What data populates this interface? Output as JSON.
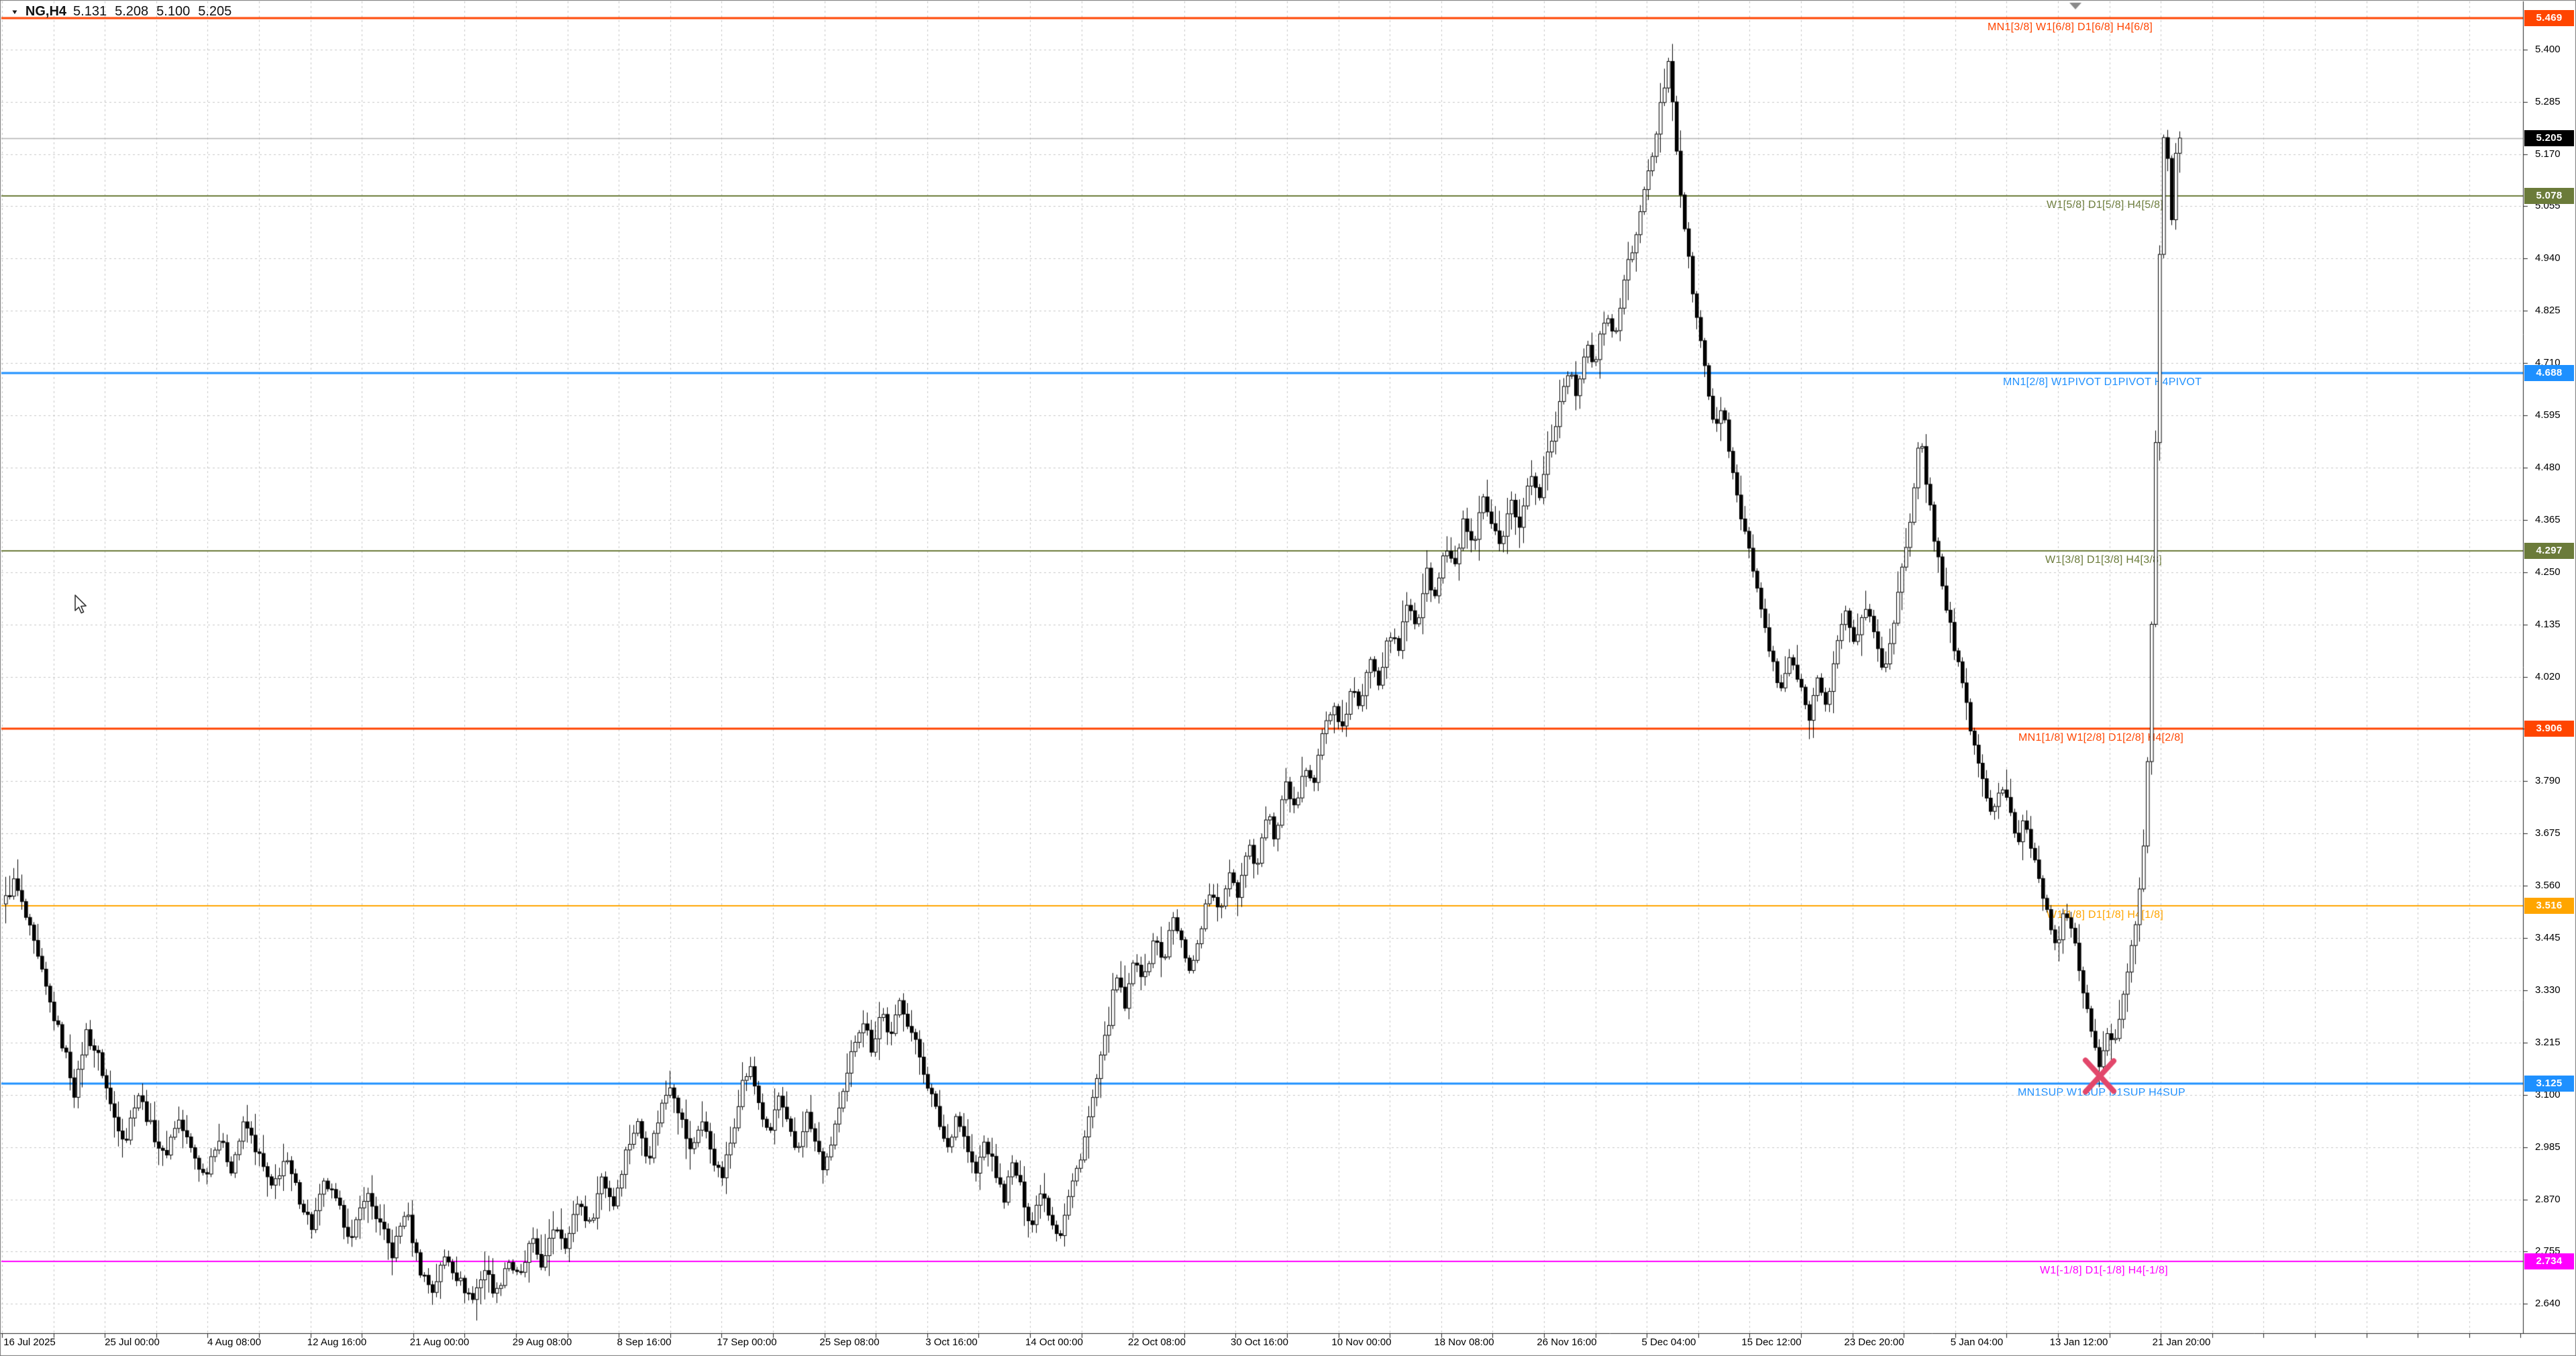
{
  "title": {
    "dropdown_icon": "▼"
  },
  "chart_data": {
    "type": "candlestick",
    "symbol": "NG,H4",
    "timeframe": "H4",
    "current_bar": {
      "open": "5.131",
      "high": "5.208",
      "low": "5.100",
      "close": "5.205"
    },
    "ylim": [
      2.576,
      5.509
    ],
    "grid": "dashed",
    "legend_position": "none",
    "price_ticks": [
      "5.400",
      "5.285",
      "5.170",
      "5.055",
      "4.940",
      "4.825",
      "4.710",
      "4.595",
      "4.480",
      "4.365",
      "4.250",
      "4.135",
      "4.020",
      "3.905",
      "3.790",
      "3.675",
      "3.560",
      "3.445",
      "3.330",
      "3.215",
      "3.100",
      "2.985",
      "2.870",
      "2.755",
      "2.640"
    ],
    "time_labels": [
      "16 Jul 2025",
      "25 Jul 00:00",
      "4 Aug 08:00",
      "12 Aug 16:00",
      "21 Aug 00:00",
      "29 Aug 08:00",
      "8 Sep 16:00",
      "17 Sep 00:00",
      "25 Sep 08:00",
      "3 Oct 16:00",
      "14 Oct 00:00",
      "22 Oct 08:00",
      "30 Oct 16:00",
      "10 Nov 00:00",
      "18 Nov 08:00",
      "26 Nov 16:00",
      "5 Dec 04:00",
      "15 Dec 12:00",
      "23 Dec 20:00",
      "5 Jan 04:00",
      "13 Jan 12:00",
      "21 Jan 20:00"
    ],
    "levels": [
      {
        "label": "MN1[3/8] W1[6/8] D1[6/8] H4[6/8]",
        "price": 5.469,
        "display": "5.469",
        "color": "#ff4500",
        "thickness": 3,
        "label_x": 2962
      },
      {
        "label": "W1[5/8] D1[5/8] H4[5/8]",
        "price": 5.078,
        "display": "5.078",
        "color": "#6b7b3a",
        "thickness": 2,
        "label_x": 3050
      },
      {
        "label": "MN1[2/8] W1PIVOT D1PIVOT H4PIVOT",
        "price": 4.688,
        "display": "4.688",
        "color": "#1e90ff",
        "thickness": 3,
        "label_x": 2985
      },
      {
        "label": "W1[3/8] D1[3/8] H4[3/8]",
        "price": 4.297,
        "display": "4.297",
        "color": "#6b7b3a",
        "thickness": 2,
        "label_x": 3048
      },
      {
        "label": "MN1[1/8] W1[2/8] D1[2/8] H4[2/8]",
        "price": 3.906,
        "display": "3.906",
        "color": "#ff4500",
        "thickness": 3,
        "label_x": 3008
      },
      {
        "label": "W1[1/8] D1[1/8] H4[1/8]",
        "price": 3.516,
        "display": "3.516",
        "color": "#ffa500",
        "thickness": 2,
        "label_x": 3050
      },
      {
        "label": "MN1SUP W1SUP D1SUP H4SUP",
        "price": 3.125,
        "display": "3.125",
        "color": "#1e90ff",
        "thickness": 3,
        "label_x": 3007
      },
      {
        "label": "W1[-1/8] D1[-1/8] H4[-1/8]",
        "price": 2.734,
        "display": "2.734",
        "color": "#ff00ff",
        "thickness": 2,
        "label_x": 3040
      }
    ],
    "bid_line": {
      "price": 5.205,
      "display": "5.205",
      "line_color": "#b2b2b2",
      "badge_bg": "#000000"
    },
    "annotations": {
      "x_mark": {
        "x": 3129,
        "price": 3.142,
        "color": "#e2476b"
      },
      "shift_triangle": {
        "x": 3093,
        "color": "#8a8a8a"
      }
    },
    "candle_colors": {
      "bull_fill": "#ffffff",
      "bear_fill": "#000000",
      "outline": "#000000"
    },
    "price_path": [
      [
        6,
        3.52
      ],
      [
        22,
        3.57
      ],
      [
        45,
        3.46
      ],
      [
        75,
        3.3
      ],
      [
        100,
        3.18
      ],
      [
        112,
        3.1
      ],
      [
        128,
        3.24
      ],
      [
        148,
        3.18
      ],
      [
        168,
        3.06
      ],
      [
        188,
        3.0
      ],
      [
        205,
        3.11
      ],
      [
        225,
        3.03
      ],
      [
        245,
        2.96
      ],
      [
        265,
        3.05
      ],
      [
        285,
        2.98
      ],
      [
        305,
        2.92
      ],
      [
        325,
        3.01
      ],
      [
        345,
        2.94
      ],
      [
        365,
        3.04
      ],
      [
        385,
        2.97
      ],
      [
        405,
        2.89
      ],
      [
        425,
        2.96
      ],
      [
        445,
        2.88
      ],
      [
        465,
        2.81
      ],
      [
        485,
        2.91
      ],
      [
        505,
        2.85
      ],
      [
        525,
        2.78
      ],
      [
        545,
        2.89
      ],
      [
        565,
        2.82
      ],
      [
        585,
        2.75
      ],
      [
        605,
        2.85
      ],
      [
        625,
        2.72
      ],
      [
        645,
        2.67
      ],
      [
        665,
        2.75
      ],
      [
        685,
        2.69
      ],
      [
        705,
        2.65
      ],
      [
        722,
        2.72
      ],
      [
        740,
        2.66
      ],
      [
        757,
        2.74
      ],
      [
        775,
        2.69
      ],
      [
        792,
        2.78
      ],
      [
        810,
        2.72
      ],
      [
        827,
        2.82
      ],
      [
        845,
        2.77
      ],
      [
        862,
        2.87
      ],
      [
        880,
        2.81
      ],
      [
        897,
        2.92
      ],
      [
        915,
        2.86
      ],
      [
        932,
        2.97
      ],
      [
        950,
        3.04
      ],
      [
        967,
        2.96
      ],
      [
        985,
        3.07
      ],
      [
        1000,
        3.13
      ],
      [
        1015,
        3.05
      ],
      [
        1030,
        2.97
      ],
      [
        1045,
        3.05
      ],
      [
        1060,
        2.98
      ],
      [
        1075,
        2.91
      ],
      [
        1090,
        3.0
      ],
      [
        1105,
        3.12
      ],
      [
        1118,
        3.16
      ],
      [
        1132,
        3.08
      ],
      [
        1146,
        3.0
      ],
      [
        1160,
        3.1
      ],
      [
        1174,
        3.03
      ],
      [
        1188,
        2.97
      ],
      [
        1202,
        3.06
      ],
      [
        1216,
        2.99
      ],
      [
        1230,
        2.93
      ],
      [
        1244,
        3.03
      ],
      [
        1258,
        3.1
      ],
      [
        1272,
        3.21
      ],
      [
        1286,
        3.27
      ],
      [
        1300,
        3.2
      ],
      [
        1314,
        3.29
      ],
      [
        1328,
        3.22
      ],
      [
        1342,
        3.31
      ],
      [
        1356,
        3.25
      ],
      [
        1370,
        3.19
      ],
      [
        1384,
        3.12
      ],
      [
        1398,
        3.05
      ],
      [
        1412,
        2.98
      ],
      [
        1426,
        3.06
      ],
      [
        1440,
        2.99
      ],
      [
        1454,
        2.92
      ],
      [
        1468,
        3.0
      ],
      [
        1482,
        2.94
      ],
      [
        1496,
        2.87
      ],
      [
        1510,
        2.95
      ],
      [
        1524,
        2.88
      ],
      [
        1538,
        2.81
      ],
      [
        1552,
        2.9
      ],
      [
        1566,
        2.83
      ],
      [
        1580,
        2.79
      ],
      [
        1594,
        2.88
      ],
      [
        1608,
        2.95
      ],
      [
        1622,
        3.04
      ],
      [
        1636,
        3.14
      ],
      [
        1650,
        3.24
      ],
      [
        1664,
        3.36
      ],
      [
        1678,
        3.29
      ],
      [
        1692,
        3.41
      ],
      [
        1706,
        3.35
      ],
      [
        1720,
        3.45
      ],
      [
        1734,
        3.39
      ],
      [
        1748,
        3.49
      ],
      [
        1762,
        3.43
      ],
      [
        1776,
        3.37
      ],
      [
        1790,
        3.47
      ],
      [
        1804,
        3.55
      ],
      [
        1818,
        3.49
      ],
      [
        1832,
        3.6
      ],
      [
        1846,
        3.54
      ],
      [
        1860,
        3.66
      ],
      [
        1874,
        3.6
      ],
      [
        1888,
        3.72
      ],
      [
        1902,
        3.66
      ],
      [
        1916,
        3.78
      ],
      [
        1930,
        3.72
      ],
      [
        1944,
        3.84
      ],
      [
        1958,
        3.78
      ],
      [
        1972,
        3.9
      ],
      [
        1986,
        3.96
      ],
      [
        2000,
        3.89
      ],
      [
        2014,
        4.0
      ],
      [
        2028,
        3.94
      ],
      [
        2042,
        4.07
      ],
      [
        2056,
        4.01
      ],
      [
        2070,
        4.13
      ],
      [
        2084,
        4.07
      ],
      [
        2098,
        4.19
      ],
      [
        2112,
        4.13
      ],
      [
        2126,
        4.25
      ],
      [
        2140,
        4.19
      ],
      [
        2154,
        4.31
      ],
      [
        2168,
        4.25
      ],
      [
        2182,
        4.37
      ],
      [
        2196,
        4.29
      ],
      [
        2210,
        4.41
      ],
      [
        2224,
        4.35
      ],
      [
        2238,
        4.29
      ],
      [
        2252,
        4.41
      ],
      [
        2266,
        4.35
      ],
      [
        2280,
        4.47
      ],
      [
        2294,
        4.41
      ],
      [
        2308,
        4.52
      ],
      [
        2322,
        4.6
      ],
      [
        2336,
        4.7
      ],
      [
        2350,
        4.64
      ],
      [
        2364,
        4.76
      ],
      [
        2378,
        4.7
      ],
      [
        2392,
        4.82
      ],
      [
        2406,
        4.76
      ],
      [
        2420,
        4.88
      ],
      [
        2434,
        4.97
      ],
      [
        2448,
        5.06
      ],
      [
        2462,
        5.16
      ],
      [
        2476,
        5.28
      ],
      [
        2488,
        5.39
      ],
      [
        2498,
        5.2
      ],
      [
        2508,
        5.04
      ],
      [
        2518,
        4.92
      ],
      [
        2528,
        4.82
      ],
      [
        2538,
        4.72
      ],
      [
        2548,
        4.64
      ],
      [
        2558,
        4.56
      ],
      [
        2568,
        4.61
      ],
      [
        2578,
        4.51
      ],
      [
        2588,
        4.43
      ],
      [
        2598,
        4.36
      ],
      [
        2612,
        4.26
      ],
      [
        2626,
        4.16
      ],
      [
        2640,
        4.06
      ],
      [
        2654,
        3.98
      ],
      [
        2668,
        4.07
      ],
      [
        2682,
        4.0
      ],
      [
        2696,
        3.93
      ],
      [
        2710,
        4.02
      ],
      [
        2724,
        3.96
      ],
      [
        2738,
        4.09
      ],
      [
        2752,
        4.16
      ],
      [
        2766,
        4.09
      ],
      [
        2780,
        4.18
      ],
      [
        2794,
        4.11
      ],
      [
        2808,
        4.03
      ],
      [
        2822,
        4.14
      ],
      [
        2836,
        4.26
      ],
      [
        2850,
        4.38
      ],
      [
        2862,
        4.56
      ],
      [
        2874,
        4.42
      ],
      [
        2886,
        4.3
      ],
      [
        2898,
        4.2
      ],
      [
        2910,
        4.11
      ],
      [
        2922,
        4.02
      ],
      [
        2934,
        3.93
      ],
      [
        2946,
        3.85
      ],
      [
        2958,
        3.77
      ],
      [
        2970,
        3.71
      ],
      [
        2982,
        3.79
      ],
      [
        2994,
        3.73
      ],
      [
        3006,
        3.65
      ],
      [
        3018,
        3.71
      ],
      [
        3030,
        3.63
      ],
      [
        3042,
        3.56
      ],
      [
        3054,
        3.49
      ],
      [
        3066,
        3.43
      ],
      [
        3078,
        3.51
      ],
      [
        3090,
        3.44
      ],
      [
        3102,
        3.36
      ],
      [
        3112,
        3.28
      ],
      [
        3122,
        3.21
      ],
      [
        3130,
        3.14
      ],
      [
        3140,
        3.25
      ],
      [
        3150,
        3.19
      ],
      [
        3160,
        3.29
      ],
      [
        3170,
        3.36
      ],
      [
        3180,
        3.45
      ],
      [
        3190,
        3.55
      ],
      [
        3198,
        3.72
      ],
      [
        3204,
        3.95
      ],
      [
        3209,
        4.25
      ],
      [
        3214,
        4.6
      ],
      [
        3219,
        4.95
      ],
      [
        3224,
        5.18
      ],
      [
        3228,
        5.28
      ],
      [
        3232,
        5.12
      ],
      [
        3236,
        4.99
      ],
      [
        3240,
        5.1
      ],
      [
        3244,
        5.21
      ],
      [
        3247,
        5.205
      ]
    ]
  }
}
